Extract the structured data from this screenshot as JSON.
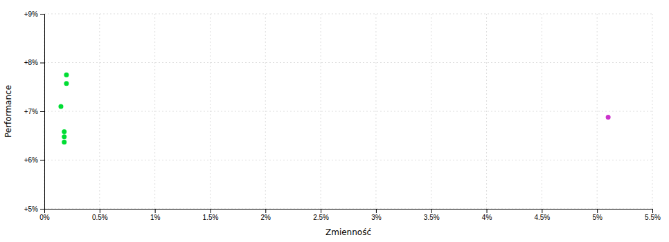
{
  "chart_data": {
    "type": "scatter",
    "xlabel": "Zmienność",
    "ylabel": "Performance",
    "xlim": [
      0.0,
      0.055
    ],
    "ylim": [
      0.05,
      0.09
    ],
    "xticks": [
      {
        "value": 0.0,
        "label": "0%"
      },
      {
        "value": 0.005,
        "label": "0.5%"
      },
      {
        "value": 0.01,
        "label": "1%"
      },
      {
        "value": 0.015,
        "label": "1.5%"
      },
      {
        "value": 0.02,
        "label": "2%"
      },
      {
        "value": 0.025,
        "label": "2.5%"
      },
      {
        "value": 0.03,
        "label": "3%"
      },
      {
        "value": 0.035,
        "label": "3.5%"
      },
      {
        "value": 0.04,
        "label": "4%"
      },
      {
        "value": 0.045,
        "label": "4.5%"
      },
      {
        "value": 0.05,
        "label": "5%"
      },
      {
        "value": 0.055,
        "label": "5.5%"
      }
    ],
    "yticks": [
      {
        "value": 0.05,
        "label": "+5%"
      },
      {
        "value": 0.06,
        "label": "+6%"
      },
      {
        "value": 0.07,
        "label": "+7%"
      },
      {
        "value": 0.08,
        "label": "+8%"
      },
      {
        "value": 0.09,
        "label": "+9%"
      }
    ],
    "grid": true,
    "series": [
      {
        "color": "#00dd33",
        "x": [
          0.002,
          0.002,
          0.0015,
          0.0018,
          0.0018,
          0.0018
        ],
        "values": [
          0.0775,
          0.0757,
          0.071,
          0.0658,
          0.0648,
          0.0637
        ]
      },
      {
        "color": "#cc33cc",
        "x": [
          0.051
        ],
        "values": [
          0.0688
        ]
      }
    ]
  }
}
